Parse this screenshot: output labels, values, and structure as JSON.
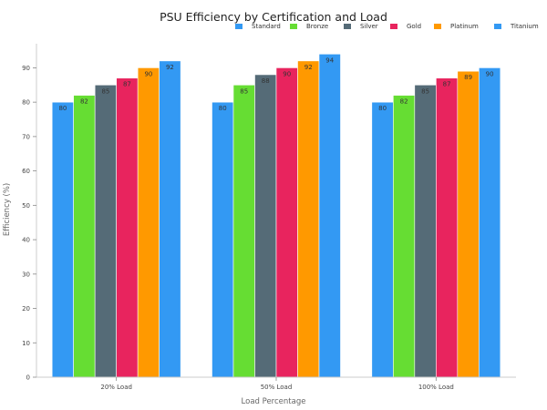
{
  "chart_data": {
    "type": "bar",
    "title": "PSU Efficiency by Certification and Load",
    "xlabel": "Load Percentage",
    "ylabel": "Efficiency (%)",
    "categories": [
      "20% Load",
      "50% Load",
      "100% Load"
    ],
    "ylim": [
      0,
      97
    ],
    "yticks": [
      0,
      10,
      20,
      30,
      40,
      50,
      60,
      70,
      80,
      90
    ],
    "grid": false,
    "legend_position": "top-right",
    "series": [
      {
        "name": "Standard",
        "color": "#3399f3",
        "values": [
          80,
          80,
          80
        ]
      },
      {
        "name": "Bronze",
        "color": "#66dd33",
        "values": [
          82,
          85,
          82
        ]
      },
      {
        "name": "Silver",
        "color": "#556b77",
        "values": [
          85,
          88,
          85
        ]
      },
      {
        "name": "Gold",
        "color": "#e8245e",
        "values": [
          87,
          90,
          87
        ]
      },
      {
        "name": "Platinum",
        "color": "#ff9900",
        "values": [
          90,
          92,
          89
        ]
      },
      {
        "name": "Titanium",
        "color": "#3399f3",
        "values": [
          92,
          94,
          90
        ]
      }
    ]
  }
}
